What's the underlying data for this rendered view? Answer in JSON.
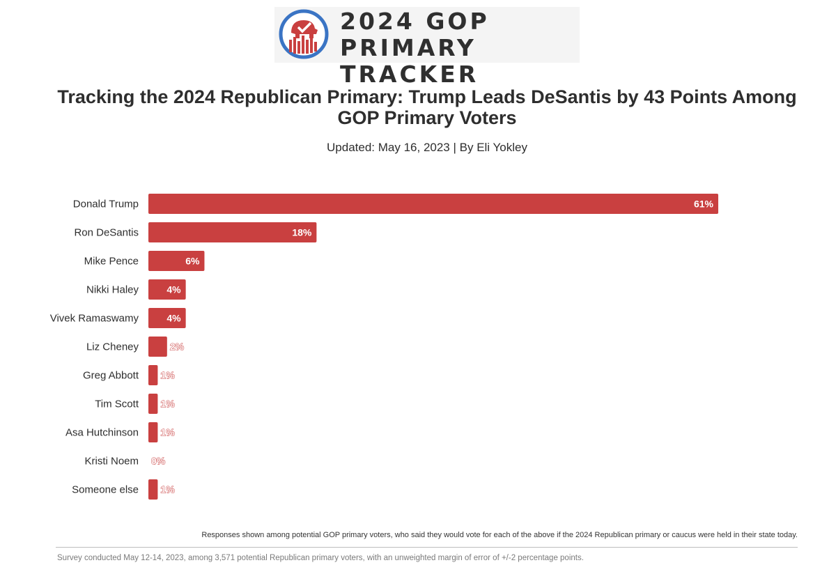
{
  "logo": {
    "line1": "2024 GOP",
    "line2": "PRIMARY TRACKER"
  },
  "headline": "Tracking the 2024 Republican Primary: Trump Leads DeSantis by 43 Points Among GOP Primary Voters",
  "byline": "Updated: May 16, 2023 | By Eli Yokley",
  "note": "Responses shown among potential GOP primary voters, who said they would vote for each of the above if the 2024 Republican primary or caucus were held in their state today.",
  "footnote": "Survey conducted May 12-14, 2023, among 3,571 potential Republican primary voters, with an unweighted margin of error of +/-2 percentage points.",
  "colors": {
    "bar": "#c94040",
    "logo_ring": "#3a74c4",
    "logo_red": "#c94040"
  },
  "chart_data": {
    "type": "bar",
    "orientation": "horizontal",
    "categories": [
      "Donald Trump",
      "Ron DeSantis",
      "Mike Pence",
      "Nikki Haley",
      "Vivek Ramaswamy",
      "Liz Cheney",
      "Greg Abbott",
      "Tim Scott",
      "Asa Hutchinson",
      "Kristi Noem",
      "Someone else"
    ],
    "values": [
      61,
      18,
      6,
      4,
      4,
      2,
      1,
      1,
      1,
      0,
      1
    ],
    "labels": [
      "61%",
      "18%",
      "6%",
      "4%",
      "4%",
      "2%",
      "1%",
      "1%",
      "1%",
      "0%",
      "1%"
    ],
    "unit": "%",
    "grid": false
  }
}
